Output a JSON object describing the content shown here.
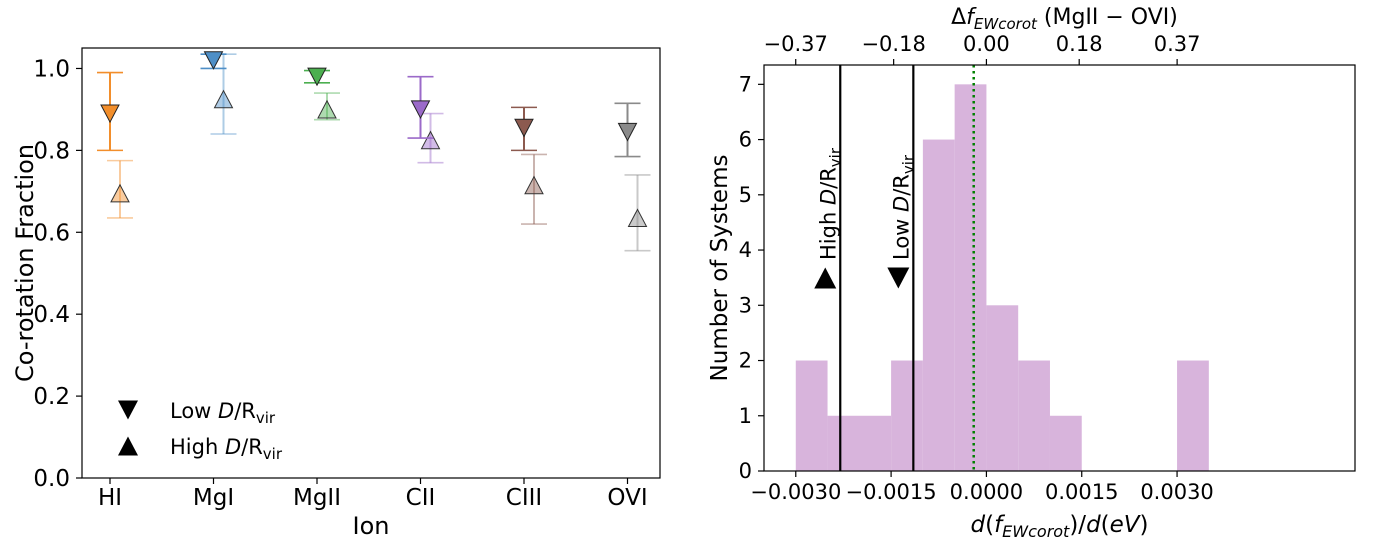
{
  "chart_data": [
    {
      "type": "scatter",
      "xlabel": "Ion",
      "ylabel": "Co-rotation Fraction",
      "categories": [
        "HI",
        "MgI",
        "MgII",
        "CII",
        "CIII",
        "OVI"
      ],
      "ylim": [
        0.0,
        1.05
      ],
      "yticks": [
        0.0,
        0.2,
        0.4,
        0.6,
        0.8,
        1.0
      ],
      "ytick_labels": [
        "0.0",
        "0.2",
        "0.4",
        "0.6",
        "0.8",
        "1.0"
      ],
      "colors": [
        "#f28e2b",
        "#4e8fc7",
        "#4caf50",
        "#9b6ac9",
        "#8c5a4f",
        "#8a8a8a"
      ],
      "series": [
        {
          "name": "Low",
          "marker": "triangle-down",
          "values": [
            0.89,
            1.02,
            0.98,
            0.9,
            0.855,
            0.845
          ],
          "err_low": [
            0.8,
            1.0,
            0.965,
            0.83,
            0.8,
            0.785
          ],
          "err_high": [
            0.99,
            1.035,
            0.995,
            0.98,
            0.905,
            0.915
          ]
        },
        {
          "name": "High",
          "marker": "triangle-up",
          "values": [
            0.695,
            0.925,
            0.9,
            0.825,
            0.715,
            0.635
          ],
          "err_low": [
            0.635,
            0.84,
            0.875,
            0.77,
            0.62,
            0.555
          ],
          "err_high": [
            0.775,
            1.035,
            0.94,
            0.89,
            0.79,
            0.74
          ]
        }
      ],
      "legend": {
        "placement": "lower-left",
        "entries": [
          {
            "prefix": "Low ",
            "italic": "D",
            "mid": "/R",
            "sub": "vir"
          },
          {
            "prefix": "High ",
            "italic": "D",
            "mid": "/R",
            "sub": "vir"
          }
        ]
      }
    },
    {
      "type": "bar",
      "subtype": "histogram",
      "xlabel": "d(f_EWcorot)/d(eV)",
      "ylabel": "Number of Systems",
      "top_xlabel": "Δf_EWcorot (MgII − OVI)",
      "xlim": [
        -0.0035,
        0.0058
      ],
      "ylim": [
        0,
        7.35
      ],
      "bar_color": "#d8b4dc",
      "bin_edges": [
        -0.003,
        -0.002,
        -0.001,
        0.0,
        0.001,
        0.002,
        0.003,
        0.004,
        0.005,
        0.006
      ],
      "bin_centers": [
        -0.00305,
        -0.00255,
        -0.00205,
        -0.00155,
        -0.00105,
        -0.00055,
        -5e-05,
        0.00045,
        0.00095,
        0.00145,
        0.00195,
        0.00245,
        0.00295,
        0.00345
      ],
      "bins": [
        {
          "x0": -0.003,
          "x1": -0.0025,
          "count": 2
        },
        {
          "x0": -0.0025,
          "x1": -0.0015,
          "count": 1
        },
        {
          "x0": -0.0015,
          "x1": -0.001,
          "count": 2
        },
        {
          "x0": -0.001,
          "x1": -0.0005,
          "count": 6
        },
        {
          "x0": -0.0005,
          "x1": 0.0,
          "count": 7
        },
        {
          "x0": 0.0,
          "x1": 0.0005,
          "count": 3
        },
        {
          "x0": 0.0005,
          "x1": 0.001,
          "count": 2
        },
        {
          "x0": 0.001,
          "x1": 0.0015,
          "count": 1
        },
        {
          "x0": 0.003,
          "x1": 0.0035,
          "count": 2
        }
      ],
      "vlines": [
        {
          "x": -0.0023,
          "style": "solid",
          "color": "#000000",
          "label_prefix": "High ",
          "label_italic": "D",
          "label_mid": "/R",
          "label_sub": "vir",
          "marker": "triangle-up"
        },
        {
          "x": -0.00115,
          "style": "solid",
          "color": "#000000",
          "label_prefix": "Low ",
          "label_italic": "D",
          "label_mid": "/R",
          "label_sub": "vir",
          "marker": "triangle-down"
        },
        {
          "x": -0.0002,
          "style": "dotted",
          "color": "#008000"
        }
      ],
      "xticks": [
        -0.003,
        -0.0015,
        0.0,
        0.0015,
        0.003
      ],
      "xtick_labels": [
        "−0.0030",
        "−0.0015",
        "0.0000",
        "0.0015",
        "0.0030"
      ],
      "yticks": [
        0,
        1,
        2,
        3,
        4,
        5,
        6,
        7
      ],
      "ytick_labels": [
        "0",
        "1",
        "2",
        "3",
        "4",
        "5",
        "6",
        "7"
      ],
      "top_xticks": [
        -0.37,
        -0.18,
        0.0,
        0.18,
        0.37
      ],
      "top_xtick_labels": [
        "−0.37",
        "−0.18",
        "0.00",
        "0.18",
        "0.37"
      ]
    }
  ]
}
